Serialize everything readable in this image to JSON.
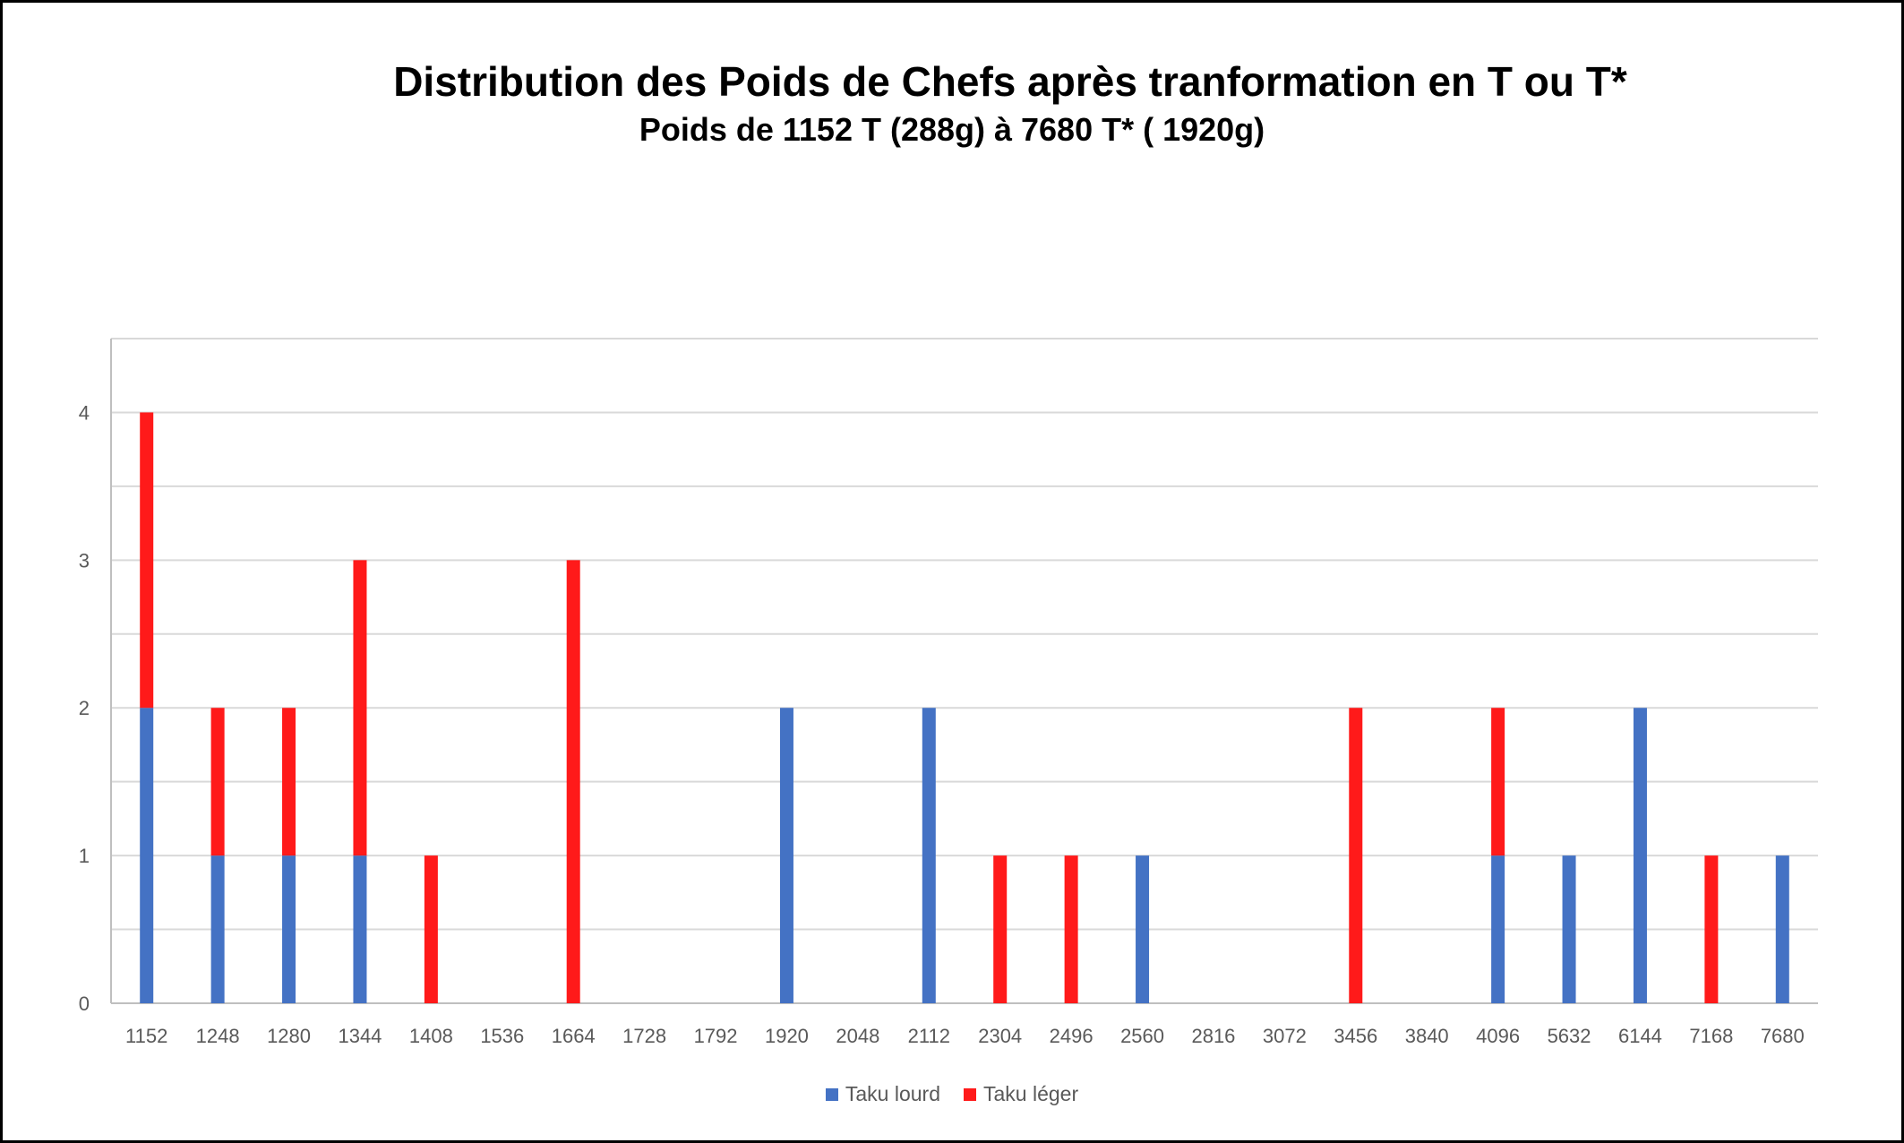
{
  "chart_data": {
    "type": "bar",
    "stacked": true,
    "title": "Distribution des Poids de Chefs après tranformation en T ou T*",
    "subtitle": "Poids de 1152 T (288g) à 7680 T* ( 1920g)",
    "categories": [
      "1152",
      "1248",
      "1280",
      "1344",
      "1408",
      "1536",
      "1664",
      "1728",
      "1792",
      "1920",
      "2048",
      "2112",
      "2304",
      "2496",
      "2560",
      "2816",
      "3072",
      "3456",
      "3840",
      "4096",
      "5632",
      "6144",
      "7168",
      "7680"
    ],
    "series": [
      {
        "name": "Taku lourd",
        "color": "#4472C4",
        "values": [
          2,
          1,
          1,
          1,
          0,
          0,
          0,
          0,
          0,
          2,
          0,
          2,
          0,
          0,
          1,
          0,
          0,
          0,
          0,
          1,
          1,
          2,
          0,
          1
        ]
      },
      {
        "name": "Taku léger",
        "color": "#FF1A1A",
        "values": [
          2,
          1,
          1,
          2,
          1,
          0,
          3,
          0,
          0,
          0,
          0,
          0,
          1,
          1,
          0,
          0,
          0,
          2,
          0,
          1,
          0,
          0,
          1,
          0
        ]
      }
    ],
    "yticks": [
      "0",
      "1",
      "2",
      "3",
      "4"
    ],
    "ylim": [
      0,
      4.5
    ],
    "grid": true,
    "legend_position": "bottom"
  }
}
